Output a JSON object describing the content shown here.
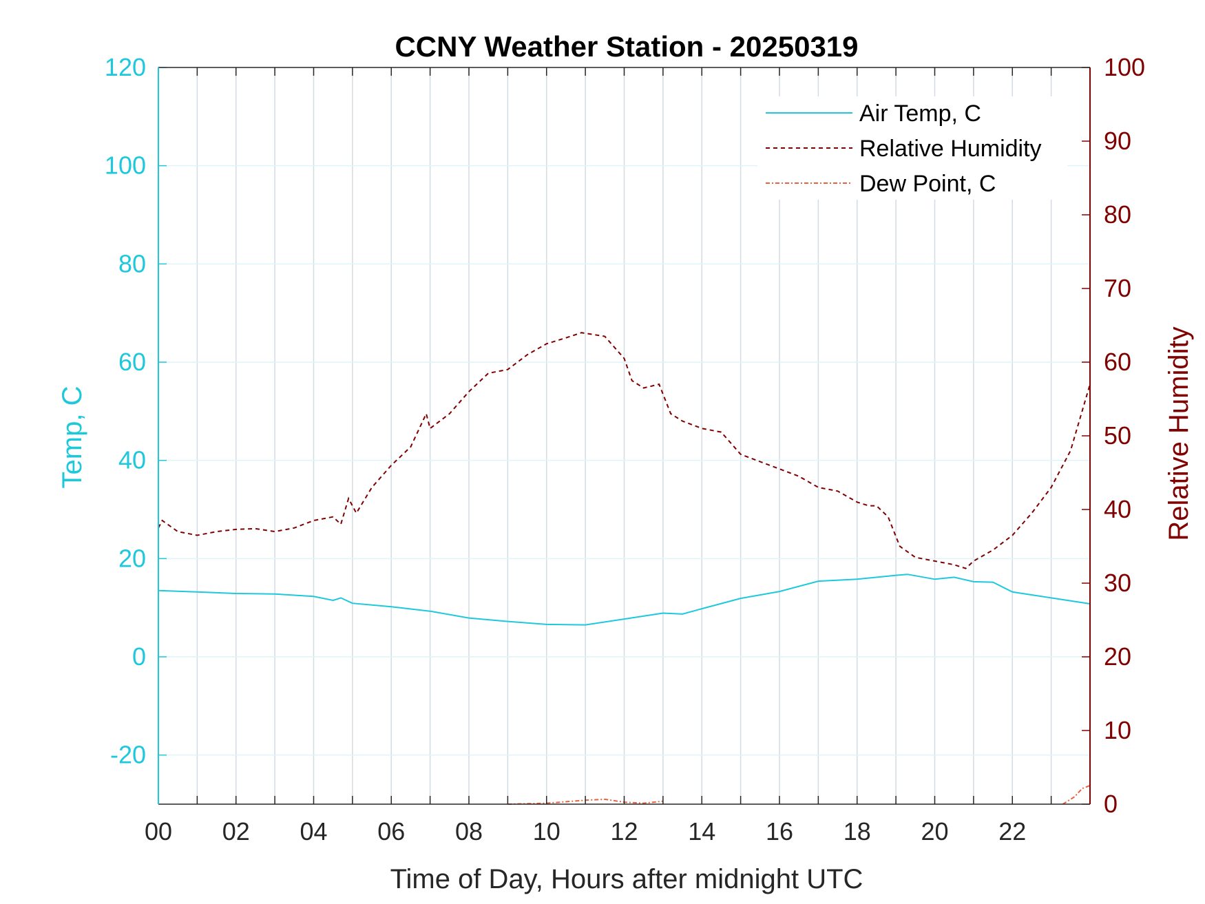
{
  "chart_data": {
    "type": "line",
    "title": "CCNY Weather Station - 20250319",
    "xlabel": "Time of Day, Hours after midnight UTC",
    "ylabel_left": "Temp, C",
    "ylabel_right": "Relative Humidity",
    "xlim": [
      0,
      24
    ],
    "ylim_left": [
      -30,
      120
    ],
    "ylim_right": [
      0,
      100
    ],
    "x_ticks": [
      "00",
      "02",
      "04",
      "06",
      "08",
      "10",
      "12",
      "14",
      "16",
      "18",
      "20",
      "22"
    ],
    "y_left_ticks": [
      "-20",
      "0",
      "20",
      "40",
      "60",
      "80",
      "100",
      "120"
    ],
    "y_right_ticks": [
      "0",
      "10",
      "20",
      "30",
      "40",
      "50",
      "60",
      "70",
      "80",
      "90",
      "100"
    ],
    "grid": true,
    "legend_position": "top-right",
    "colors": {
      "air_temp": "#1ec8dc",
      "relative_humidity": "#800000",
      "dew_point": "#e8603c"
    },
    "series": [
      {
        "name": "Air Temp, C",
        "axis": "left",
        "style": "solid",
        "x": [
          0,
          1,
          2,
          3,
          4,
          4.5,
          4.7,
          5,
          6,
          7,
          8,
          9,
          10,
          11,
          12,
          13,
          13.5,
          14,
          15,
          16,
          17,
          18,
          19,
          19.3,
          20,
          20.5,
          21,
          21.5,
          22,
          23,
          24
        ],
        "values": [
          13.5,
          13.2,
          12.9,
          12.8,
          12.3,
          11.5,
          12.0,
          10.9,
          10.2,
          9.3,
          7.9,
          7.2,
          6.6,
          6.5,
          7.7,
          8.9,
          8.7,
          9.8,
          11.9,
          13.3,
          15.4,
          15.8,
          16.6,
          16.8,
          15.8,
          16.2,
          15.3,
          15.2,
          13.2,
          12.0,
          10.8
        ]
      },
      {
        "name": "Relative Humidity",
        "axis": "right",
        "style": "dashed",
        "x": [
          0,
          0.1,
          0.5,
          1,
          1.5,
          2,
          2.5,
          3,
          3.5,
          4,
          4.5,
          4.7,
          4.9,
          5.1,
          5.5,
          6,
          6.5,
          6.9,
          7.0,
          7.5,
          8,
          8.5,
          9,
          9.5,
          10,
          10.5,
          10.9,
          11.5,
          12,
          12.2,
          12.5,
          12.9,
          13.2,
          13.5,
          14,
          14.5,
          15,
          15.5,
          16,
          16.5,
          17,
          17.5,
          18,
          18.3,
          18.5,
          18.8,
          19.1,
          19.5,
          20,
          20.5,
          20.8,
          21,
          21.5,
          22,
          22.5,
          23,
          23.5,
          24
        ],
        "values": [
          37.5,
          38.5,
          37.0,
          36.5,
          37.0,
          37.3,
          37.4,
          37.0,
          37.5,
          38.5,
          39.0,
          38.0,
          41.5,
          39.5,
          43.0,
          46.0,
          48.5,
          53.0,
          51.0,
          53.0,
          56.0,
          58.5,
          59.0,
          61.0,
          62.5,
          63.3,
          64.0,
          63.5,
          60.5,
          57.5,
          56.5,
          57.0,
          53.0,
          52.0,
          51.0,
          50.5,
          47.5,
          46.5,
          45.5,
          44.5,
          43.0,
          42.5,
          41.0,
          40.5,
          40.5,
          39.0,
          35.0,
          33.5,
          33.0,
          32.5,
          32.0,
          33.0,
          34.5,
          36.5,
          39.5,
          43.0,
          48.0,
          57.0
        ]
      },
      {
        "name": "Dew Point, C",
        "axis": "left",
        "style": "dashdot",
        "x": [
          9.0,
          10.0,
          11.0,
          11.5,
          12.0,
          12.5,
          13.0,
          23.3,
          23.6,
          23.8,
          24.0
        ],
        "values": [
          -30,
          -29.8,
          -29.2,
          -29.0,
          -29.6,
          -29.8,
          -29.4,
          -30,
          -28.5,
          -26.8,
          -26.2
        ]
      }
    ]
  }
}
